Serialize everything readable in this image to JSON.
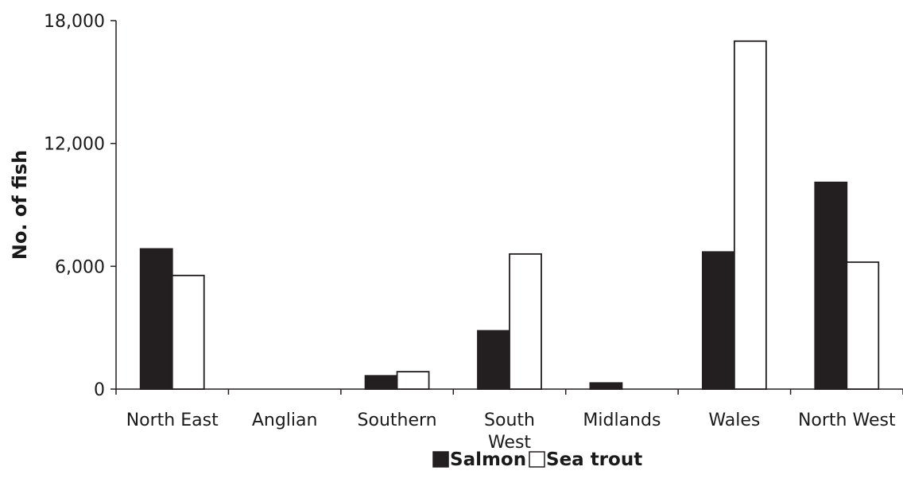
{
  "chart_data": {
    "type": "bar",
    "title": "",
    "xlabel": "",
    "ylabel": "No. of fish",
    "ylim": [
      0,
      18000
    ],
    "yticks": [
      0,
      6000,
      12000,
      18000
    ],
    "ytick_labels": [
      "0",
      "6,000",
      "12,000",
      "18,000"
    ],
    "categories": [
      "North East",
      "Anglian",
      "Southern",
      "South West",
      "Midlands",
      "Wales",
      "North West"
    ],
    "category_label_lines": [
      [
        "North East"
      ],
      [
        "Anglian"
      ],
      [
        "Southern"
      ],
      [
        "South",
        "West"
      ],
      [
        "Midlands"
      ],
      [
        "Wales"
      ],
      [
        "North West"
      ]
    ],
    "series": [
      {
        "name": "Salmon",
        "values": [
          6850,
          0,
          650,
          2850,
          300,
          6700,
          10100
        ],
        "color": "#231f20"
      },
      {
        "name": "Sea trout",
        "values": [
          5550,
          0,
          850,
          6600,
          0,
          17000,
          6200
        ],
        "color": "#ffffff"
      }
    ],
    "legend": {
      "position": "bottom-center",
      "items": [
        "Salmon",
        "Sea trout"
      ]
    },
    "grid": false
  }
}
